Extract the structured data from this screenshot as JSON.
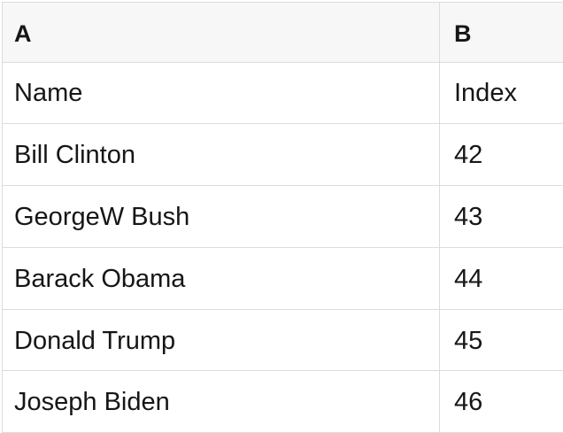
{
  "table": {
    "columns": [
      {
        "id": "A",
        "label": "A"
      },
      {
        "id": "B",
        "label": "B"
      }
    ],
    "rows": [
      [
        "Name",
        "Index"
      ],
      [
        "Bill Clinton",
        "42"
      ],
      [
        "GeorgeW Bush",
        "43"
      ],
      [
        "Barack Obama",
        "44"
      ],
      [
        "Donald Trump",
        "45"
      ],
      [
        "Joseph Biden",
        "46"
      ]
    ]
  },
  "colors": {
    "header_bg": "#f7f7f7",
    "row_bg": "#ffffff",
    "border": "#dcdcdc",
    "text": "#161616"
  }
}
